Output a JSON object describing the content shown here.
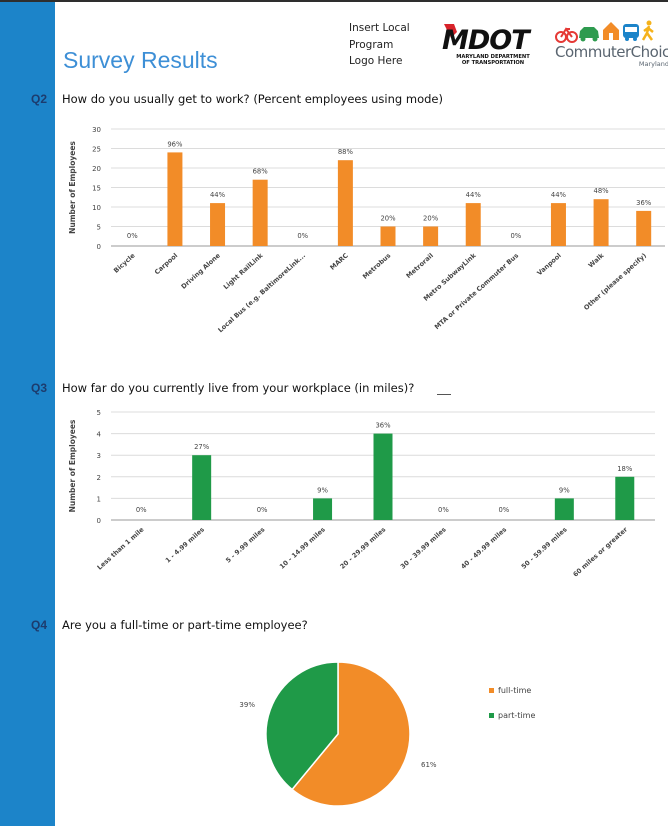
{
  "page": {
    "title": "Survey Results",
    "logo_placeholder_lines": [
      "Insert Local",
      "Program",
      "Logo Here"
    ],
    "mdot_logo": {
      "letters": "MDOT",
      "line1": "MARYLAND DEPARTMENT",
      "line2": "OF TRANSPORTATION"
    },
    "commuter_logo": {
      "name": "CommuterChoice",
      "sub": "Maryland"
    }
  },
  "colors": {
    "sidebar": "#1c84c9",
    "orange": "#f28c28",
    "green": "#1f9a48",
    "title": "#3d8fd6"
  },
  "questions": [
    {
      "num": "Q2",
      "text": "How do you usually get to work? (Percent employees using mode)"
    },
    {
      "num": "Q3",
      "text": "How far do you currently live from your workplace (in miles)?"
    },
    {
      "num": "Q4",
      "text": "Are you a full-time or part-time employee?"
    }
  ],
  "chart_data": [
    {
      "type": "bar",
      "categories": [
        "Bicycle",
        "Carpool",
        "Driving Alone",
        "Light RailLink",
        "Local Bus (e.g. BaltimoreLink...",
        "MARC",
        "Metrobus",
        "Metrorail",
        "Metro SubwayLink",
        "MTA or Private Commuter Bus",
        "Vanpool",
        "Walk",
        "Other (please specify)"
      ],
      "values": [
        0,
        24,
        11,
        17,
        0,
        22,
        5,
        5,
        11,
        0,
        11,
        12,
        9
      ],
      "data_labels": [
        "0%",
        "96%",
        "44%",
        "68%",
        "0%",
        "88%",
        "20%",
        "20%",
        "44%",
        "0%",
        "44%",
        "48%",
        "36%"
      ],
      "ylabel": "Number of Employees",
      "ylim": [
        0,
        30
      ],
      "yticks": [
        "0",
        "5",
        "10",
        "15",
        "20",
        "25",
        "30"
      ],
      "grid": true,
      "color": "#f28c28"
    },
    {
      "type": "bar",
      "categories": [
        "Less than 1 mile",
        "1 - 4.99 miles",
        "5 - 9.99 miles",
        "10 - 14.99 miles",
        "20 - 29.99 miles",
        "30 - 39.99 miles",
        "40 - 49.99 miles",
        "50 - 59.99 miles",
        "60 miles or greater"
      ],
      "values": [
        0,
        3,
        0,
        1,
        4,
        0,
        0,
        1,
        2
      ],
      "data_labels": [
        "0%",
        "27%",
        "0%",
        "9%",
        "36%",
        "0%",
        "0%",
        "9%",
        "18%"
      ],
      "ylabel": "Number of Employees",
      "ylim": [
        0,
        5
      ],
      "yticks": [
        "0",
        "1",
        "2",
        "3",
        "4",
        "5"
      ],
      "grid": true,
      "color": "#1f9a48"
    },
    {
      "type": "pie",
      "categories": [
        "full-time",
        "part-time"
      ],
      "values": [
        61,
        39
      ],
      "data_labels": [
        "61%",
        "39%"
      ],
      "colors": [
        "#f28c28",
        "#1f9a48"
      ],
      "legend": "right"
    }
  ]
}
